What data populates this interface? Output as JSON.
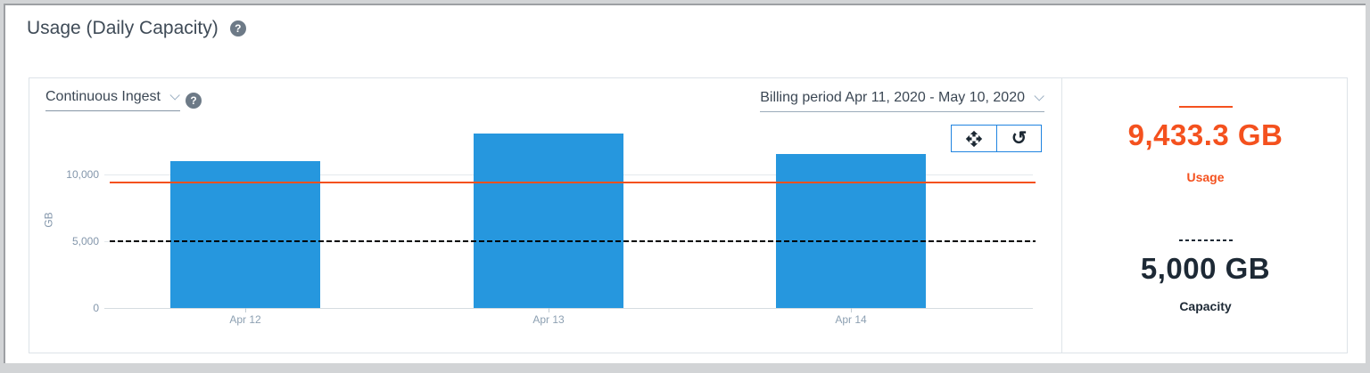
{
  "page_title": "Usage (Daily Capacity)",
  "icons": {
    "help_glyph": "?",
    "reset_glyph": "↺",
    "pan_icon": "open-with-arrows",
    "chevron_icon": "chevron-down"
  },
  "chart_card": {
    "metric_dropdown": {
      "value": "Continuous Ingest"
    },
    "billing_dropdown": {
      "value": "Billing period Apr 11, 2020 - May 10, 2020"
    }
  },
  "chart_data": {
    "type": "bar",
    "categories": [
      "Apr 12",
      "Apr 13",
      "Apr 14"
    ],
    "values": [
      11000,
      13070,
      11530
    ],
    "ylabel": "GB",
    "yticks": [
      {
        "label": "0",
        "value": 0
      },
      {
        "label": "5,000",
        "value": 5000
      },
      {
        "label": "10,000",
        "value": 10000
      }
    ],
    "ylim": [
      0,
      13500
    ],
    "bar_color": "#2697de",
    "grid": "horizontal",
    "legend": "off",
    "reference_lines": [
      {
        "name": "usage",
        "value": 9433.3,
        "style": "solid",
        "color": "#f4511e"
      },
      {
        "name": "capacity",
        "value": 5000,
        "style": "dashed",
        "color": "#000000"
      }
    ]
  },
  "summary": {
    "usage": {
      "value": "9,433.3 GB",
      "label": "Usage",
      "color": "#f4511e",
      "marker": "solid"
    },
    "capacity": {
      "value": "5,000 GB",
      "label": "Capacity",
      "color": "#1d2935",
      "marker": "dashed"
    }
  },
  "colors": {
    "bar_blue": "#2697de",
    "usage_orange": "#f4511e",
    "capacity_dark": "#1d2935",
    "axis_text": "#8396ab",
    "toolbar_border": "#2084e0"
  }
}
